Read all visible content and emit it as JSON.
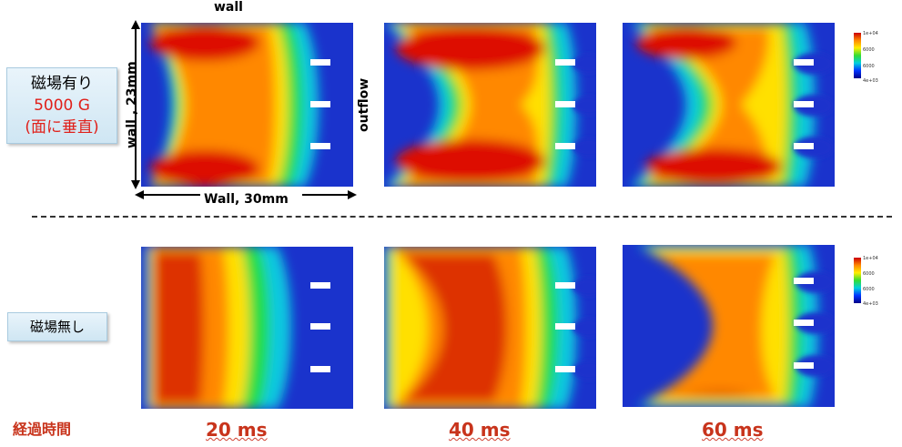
{
  "labels": {
    "wall_top": "wall",
    "wall_left": "wall , 23mm",
    "wall_bottom": "Wall, 30mm",
    "outflow": "outflow",
    "magnetic_on_line1": "磁場有り",
    "magnetic_on_line2": "5000 G",
    "magnetic_on_line3": "(面に垂直)",
    "magnetic_off": "磁場無し",
    "elapsed_time": "経過時間"
  },
  "times": [
    "20 ms",
    "40 ms",
    "60 ms"
  ],
  "colorbar": {
    "max": "1e+04",
    "mid1": "6000",
    "mid2": "6000",
    "min": "4e+03"
  },
  "colors": {
    "field_low": "#1a33cc",
    "field_high": "#dd1100",
    "time_label": "#c8341c",
    "accent_red": "#e0201a"
  }
}
